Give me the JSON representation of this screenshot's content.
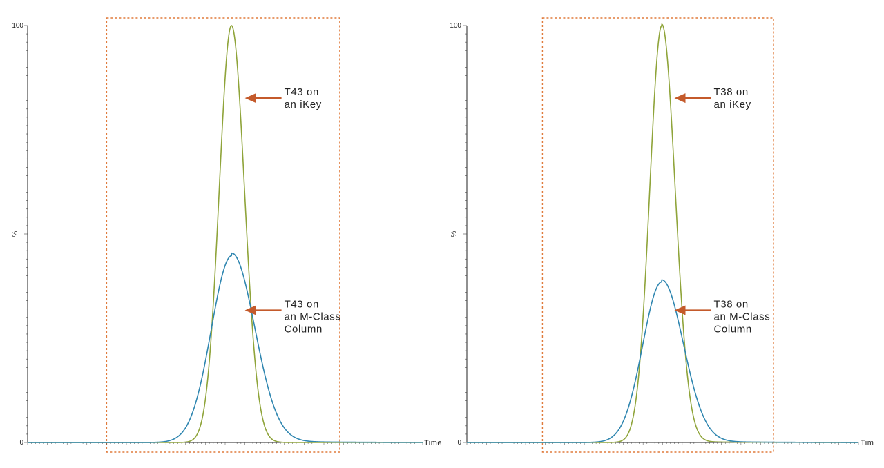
{
  "chart_data": [
    {
      "type": "line",
      "ylabel": "%",
      "xlabel": "Time",
      "yticks": [
        "0",
        "100"
      ],
      "ylim": [
        0,
        100
      ],
      "xlim": [
        0,
        100
      ],
      "highlight_box": {
        "x_range": [
          20,
          79
        ],
        "style": "dashed",
        "color": "#e07b3c"
      },
      "series": [
        {
          "color": "#8fa43a",
          "peak_x": 51.6,
          "peak_y": 100,
          "sigma_left": 3.1,
          "sigma_right": 3.3,
          "tail": 0
        },
        {
          "color": "#2f86b0",
          "peak_x": 51.7,
          "peak_y": 44.8,
          "sigma_left": 5.2,
          "sigma_right": 5.8,
          "tail": 0.6
        }
      ],
      "annotations": [
        {
          "lines": [
            "T43 on",
            "an iKey"
          ],
          "target_y": 82.6,
          "x": 55
        },
        {
          "lines": [
            "T43 on",
            "an M-Class",
            "Column"
          ],
          "target_y": 31.7,
          "x": 55
        }
      ]
    },
    {
      "type": "line",
      "ylabel": "%",
      "xlabel": "Tim",
      "yticks": [
        "0",
        "100"
      ],
      "ylim": [
        0,
        100
      ],
      "xlim": [
        0,
        100
      ],
      "highlight_box": {
        "x_range": [
          19.3,
          78.3
        ],
        "style": "dashed",
        "color": "#e07b3c"
      },
      "series": [
        {
          "color": "#8fa43a",
          "peak_x": 49.8,
          "peak_y": 100,
          "sigma_left": 3.1,
          "sigma_right": 3.4,
          "tail": 0.3
        },
        {
          "color": "#2f86b0",
          "peak_x": 49.8,
          "peak_y": 38.5,
          "sigma_left": 4.9,
          "sigma_right": 5.5,
          "tail": 0.5
        }
      ],
      "annotations": [
        {
          "lines": [
            "T38 on",
            "an iKey"
          ],
          "target_y": 82.6,
          "x": 53
        },
        {
          "lines": [
            "T38 on",
            "an M-Class",
            "Column"
          ],
          "target_y": 31.7,
          "x": 53
        }
      ]
    }
  ]
}
